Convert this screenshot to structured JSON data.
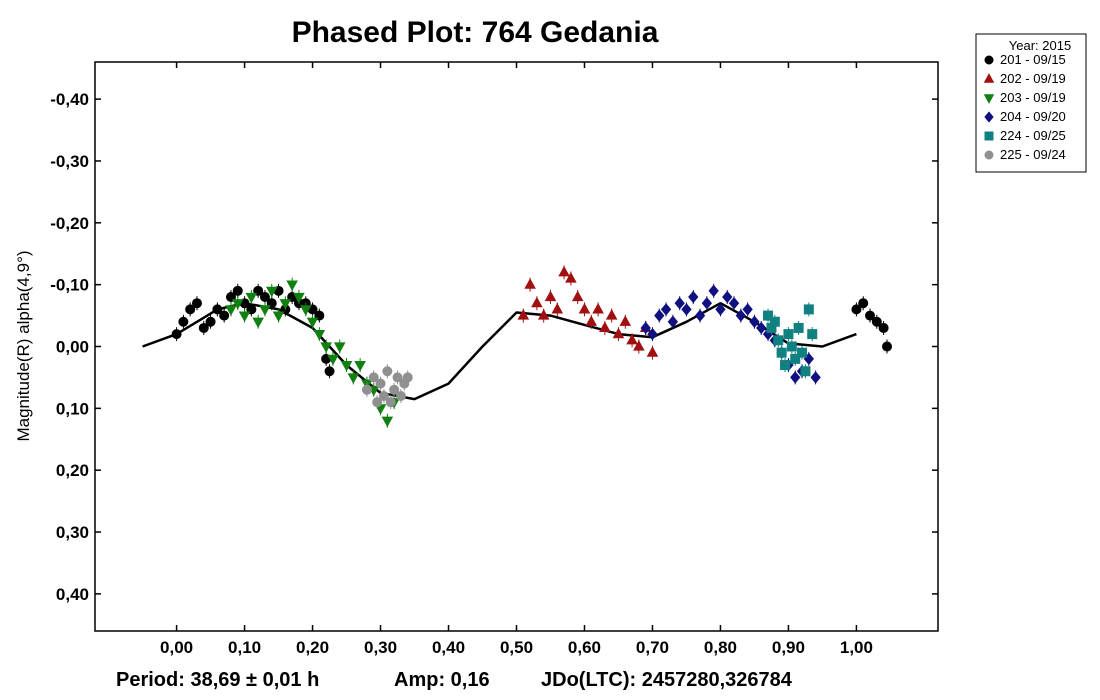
{
  "chart_data": {
    "type": "scatter",
    "title": "Phased Plot: 764 Gedania",
    "ylabel": "Magnitude(R) alpha(4,9°)",
    "xlabel": "",
    "xlim": [
      -0.12,
      1.12
    ],
    "ylim": [
      -0.46,
      0.46
    ],
    "y_inverted": true,
    "grid": false,
    "legend_position": "top-right, outside plot",
    "x_ticks": [
      0.0,
      0.1,
      0.2,
      0.3,
      0.4,
      0.5,
      0.6,
      0.7,
      0.8,
      0.9,
      1.0
    ],
    "x_tick_labels": [
      "0,00",
      "0,10",
      "0,20",
      "0,30",
      "0,40",
      "0,50",
      "0,60",
      "0,70",
      "0,80",
      "0,90",
      "1,00"
    ],
    "y_ticks": [
      -0.4,
      -0.3,
      -0.2,
      -0.1,
      0.0,
      0.1,
      0.2,
      0.3,
      0.4
    ],
    "y_tick_labels": [
      "-0,40",
      "-0,30",
      "-0,20",
      "-0,10",
      "0,00",
      "0,10",
      "0,20",
      "0,30",
      "0,40"
    ],
    "legend_title": "Year: 2015",
    "series": [
      {
        "name": "201 - 09/15",
        "marker": "circle",
        "color": "#000000",
        "points": [
          [
            0.0,
            -0.02
          ],
          [
            0.01,
            -0.04
          ],
          [
            0.02,
            -0.06
          ],
          [
            0.03,
            -0.07
          ],
          [
            0.04,
            -0.03
          ],
          [
            0.05,
            -0.04
          ],
          [
            0.06,
            -0.06
          ],
          [
            0.07,
            -0.05
          ],
          [
            0.08,
            -0.08
          ],
          [
            0.09,
            -0.09
          ],
          [
            0.1,
            -0.07
          ],
          [
            0.11,
            -0.06
          ],
          [
            0.12,
            -0.09
          ],
          [
            0.13,
            -0.08
          ],
          [
            0.14,
            -0.07
          ],
          [
            0.15,
            -0.09
          ],
          [
            0.16,
            -0.06
          ],
          [
            0.17,
            -0.08
          ],
          [
            0.18,
            -0.07
          ],
          [
            0.19,
            -0.07
          ],
          [
            0.2,
            -0.06
          ],
          [
            0.21,
            -0.05
          ],
          [
            0.22,
            0.02
          ],
          [
            0.225,
            0.04
          ],
          [
            1.0,
            -0.06
          ],
          [
            1.01,
            -0.07
          ],
          [
            1.02,
            -0.05
          ],
          [
            1.03,
            -0.04
          ],
          [
            1.04,
            -0.03
          ],
          [
            1.045,
            0.0
          ]
        ]
      },
      {
        "name": "202 - 09/19",
        "marker": "triangle-up",
        "color": "#a01010",
        "points": [
          [
            0.51,
            -0.05
          ],
          [
            0.52,
            -0.1
          ],
          [
            0.53,
            -0.07
          ],
          [
            0.54,
            -0.05
          ],
          [
            0.55,
            -0.08
          ],
          [
            0.56,
            -0.06
          ],
          [
            0.57,
            -0.12
          ],
          [
            0.58,
            -0.11
          ],
          [
            0.59,
            -0.08
          ],
          [
            0.6,
            -0.06
          ],
          [
            0.61,
            -0.04
          ],
          [
            0.62,
            -0.06
          ],
          [
            0.63,
            -0.03
          ],
          [
            0.64,
            -0.05
          ],
          [
            0.65,
            -0.02
          ],
          [
            0.66,
            -0.04
          ],
          [
            0.67,
            -0.01
          ],
          [
            0.68,
            0.0
          ],
          [
            0.69,
            -0.03
          ],
          [
            0.7,
            0.01
          ]
        ]
      },
      {
        "name": "203 - 09/19",
        "marker": "triangle-down",
        "color": "#108010",
        "points": [
          [
            0.08,
            -0.06
          ],
          [
            0.09,
            -0.07
          ],
          [
            0.1,
            -0.05
          ],
          [
            0.11,
            -0.08
          ],
          [
            0.12,
            -0.04
          ],
          [
            0.13,
            -0.06
          ],
          [
            0.14,
            -0.09
          ],
          [
            0.15,
            -0.05
          ],
          [
            0.16,
            -0.07
          ],
          [
            0.17,
            -0.1
          ],
          [
            0.18,
            -0.08
          ],
          [
            0.19,
            -0.06
          ],
          [
            0.2,
            -0.04
          ],
          [
            0.21,
            -0.02
          ],
          [
            0.22,
            0.0
          ],
          [
            0.23,
            0.02
          ],
          [
            0.24,
            0.0
          ],
          [
            0.25,
            0.03
          ],
          [
            0.26,
            0.05
          ],
          [
            0.27,
            0.03
          ],
          [
            0.28,
            0.06
          ],
          [
            0.29,
            0.07
          ],
          [
            0.3,
            0.1
          ],
          [
            0.31,
            0.12
          ],
          [
            0.32,
            0.09
          ]
        ]
      },
      {
        "name": "204 - 09/20",
        "marker": "diamond",
        "color": "#101080",
        "points": [
          [
            0.69,
            -0.03
          ],
          [
            0.7,
            -0.02
          ],
          [
            0.71,
            -0.05
          ],
          [
            0.72,
            -0.06
          ],
          [
            0.73,
            -0.04
          ],
          [
            0.74,
            -0.07
          ],
          [
            0.75,
            -0.06
          ],
          [
            0.76,
            -0.08
          ],
          [
            0.77,
            -0.05
          ],
          [
            0.78,
            -0.07
          ],
          [
            0.79,
            -0.09
          ],
          [
            0.8,
            -0.06
          ],
          [
            0.81,
            -0.08
          ],
          [
            0.82,
            -0.07
          ],
          [
            0.83,
            -0.05
          ],
          [
            0.84,
            -0.06
          ],
          [
            0.85,
            -0.04
          ],
          [
            0.86,
            -0.03
          ],
          [
            0.87,
            -0.02
          ],
          [
            0.88,
            -0.01
          ],
          [
            0.89,
            0.01
          ],
          [
            0.9,
            0.03
          ],
          [
            0.91,
            0.05
          ],
          [
            0.92,
            0.04
          ],
          [
            0.93,
            0.02
          ],
          [
            0.94,
            0.05
          ]
        ]
      },
      {
        "name": "224 - 09/25",
        "marker": "square",
        "color": "#108080",
        "points": [
          [
            0.87,
            -0.05
          ],
          [
            0.875,
            -0.03
          ],
          [
            0.88,
            -0.04
          ],
          [
            0.885,
            -0.01
          ],
          [
            0.89,
            0.01
          ],
          [
            0.895,
            0.03
          ],
          [
            0.9,
            -0.02
          ],
          [
            0.905,
            0.0
          ],
          [
            0.91,
            0.02
          ],
          [
            0.915,
            -0.03
          ],
          [
            0.92,
            0.01
          ],
          [
            0.925,
            0.04
          ],
          [
            0.93,
            -0.06
          ],
          [
            0.935,
            -0.02
          ]
        ]
      },
      {
        "name": "225 - 09/24",
        "marker": "circle",
        "color": "#909090",
        "points": [
          [
            0.28,
            0.07
          ],
          [
            0.29,
            0.05
          ],
          [
            0.295,
            0.09
          ],
          [
            0.3,
            0.06
          ],
          [
            0.305,
            0.08
          ],
          [
            0.31,
            0.04
          ],
          [
            0.315,
            0.09
          ],
          [
            0.32,
            0.07
          ],
          [
            0.325,
            0.05
          ],
          [
            0.33,
            0.08
          ],
          [
            0.335,
            0.06
          ],
          [
            0.34,
            0.05
          ]
        ]
      }
    ],
    "fit_curve": {
      "x": [
        -0.05,
        0.0,
        0.03,
        0.06,
        0.1,
        0.15,
        0.2,
        0.25,
        0.3,
        0.35,
        0.4,
        0.45,
        0.5,
        0.55,
        0.6,
        0.65,
        0.7,
        0.75,
        0.8,
        0.85,
        0.9,
        0.95,
        1.0
      ],
      "y": [
        0.0,
        -0.02,
        -0.04,
        -0.06,
        -0.07,
        -0.06,
        -0.03,
        0.03,
        0.075,
        0.085,
        0.06,
        0.0,
        -0.055,
        -0.05,
        -0.035,
        -0.02,
        -0.015,
        -0.04,
        -0.07,
        -0.04,
        -0.005,
        0.0,
        -0.02
      ]
    }
  },
  "footer": {
    "period": "Period: 38,69 ± 0,01 h",
    "amp": "Amp: 0,16",
    "jdo": "JDo(LTC): 2457280,326784"
  }
}
